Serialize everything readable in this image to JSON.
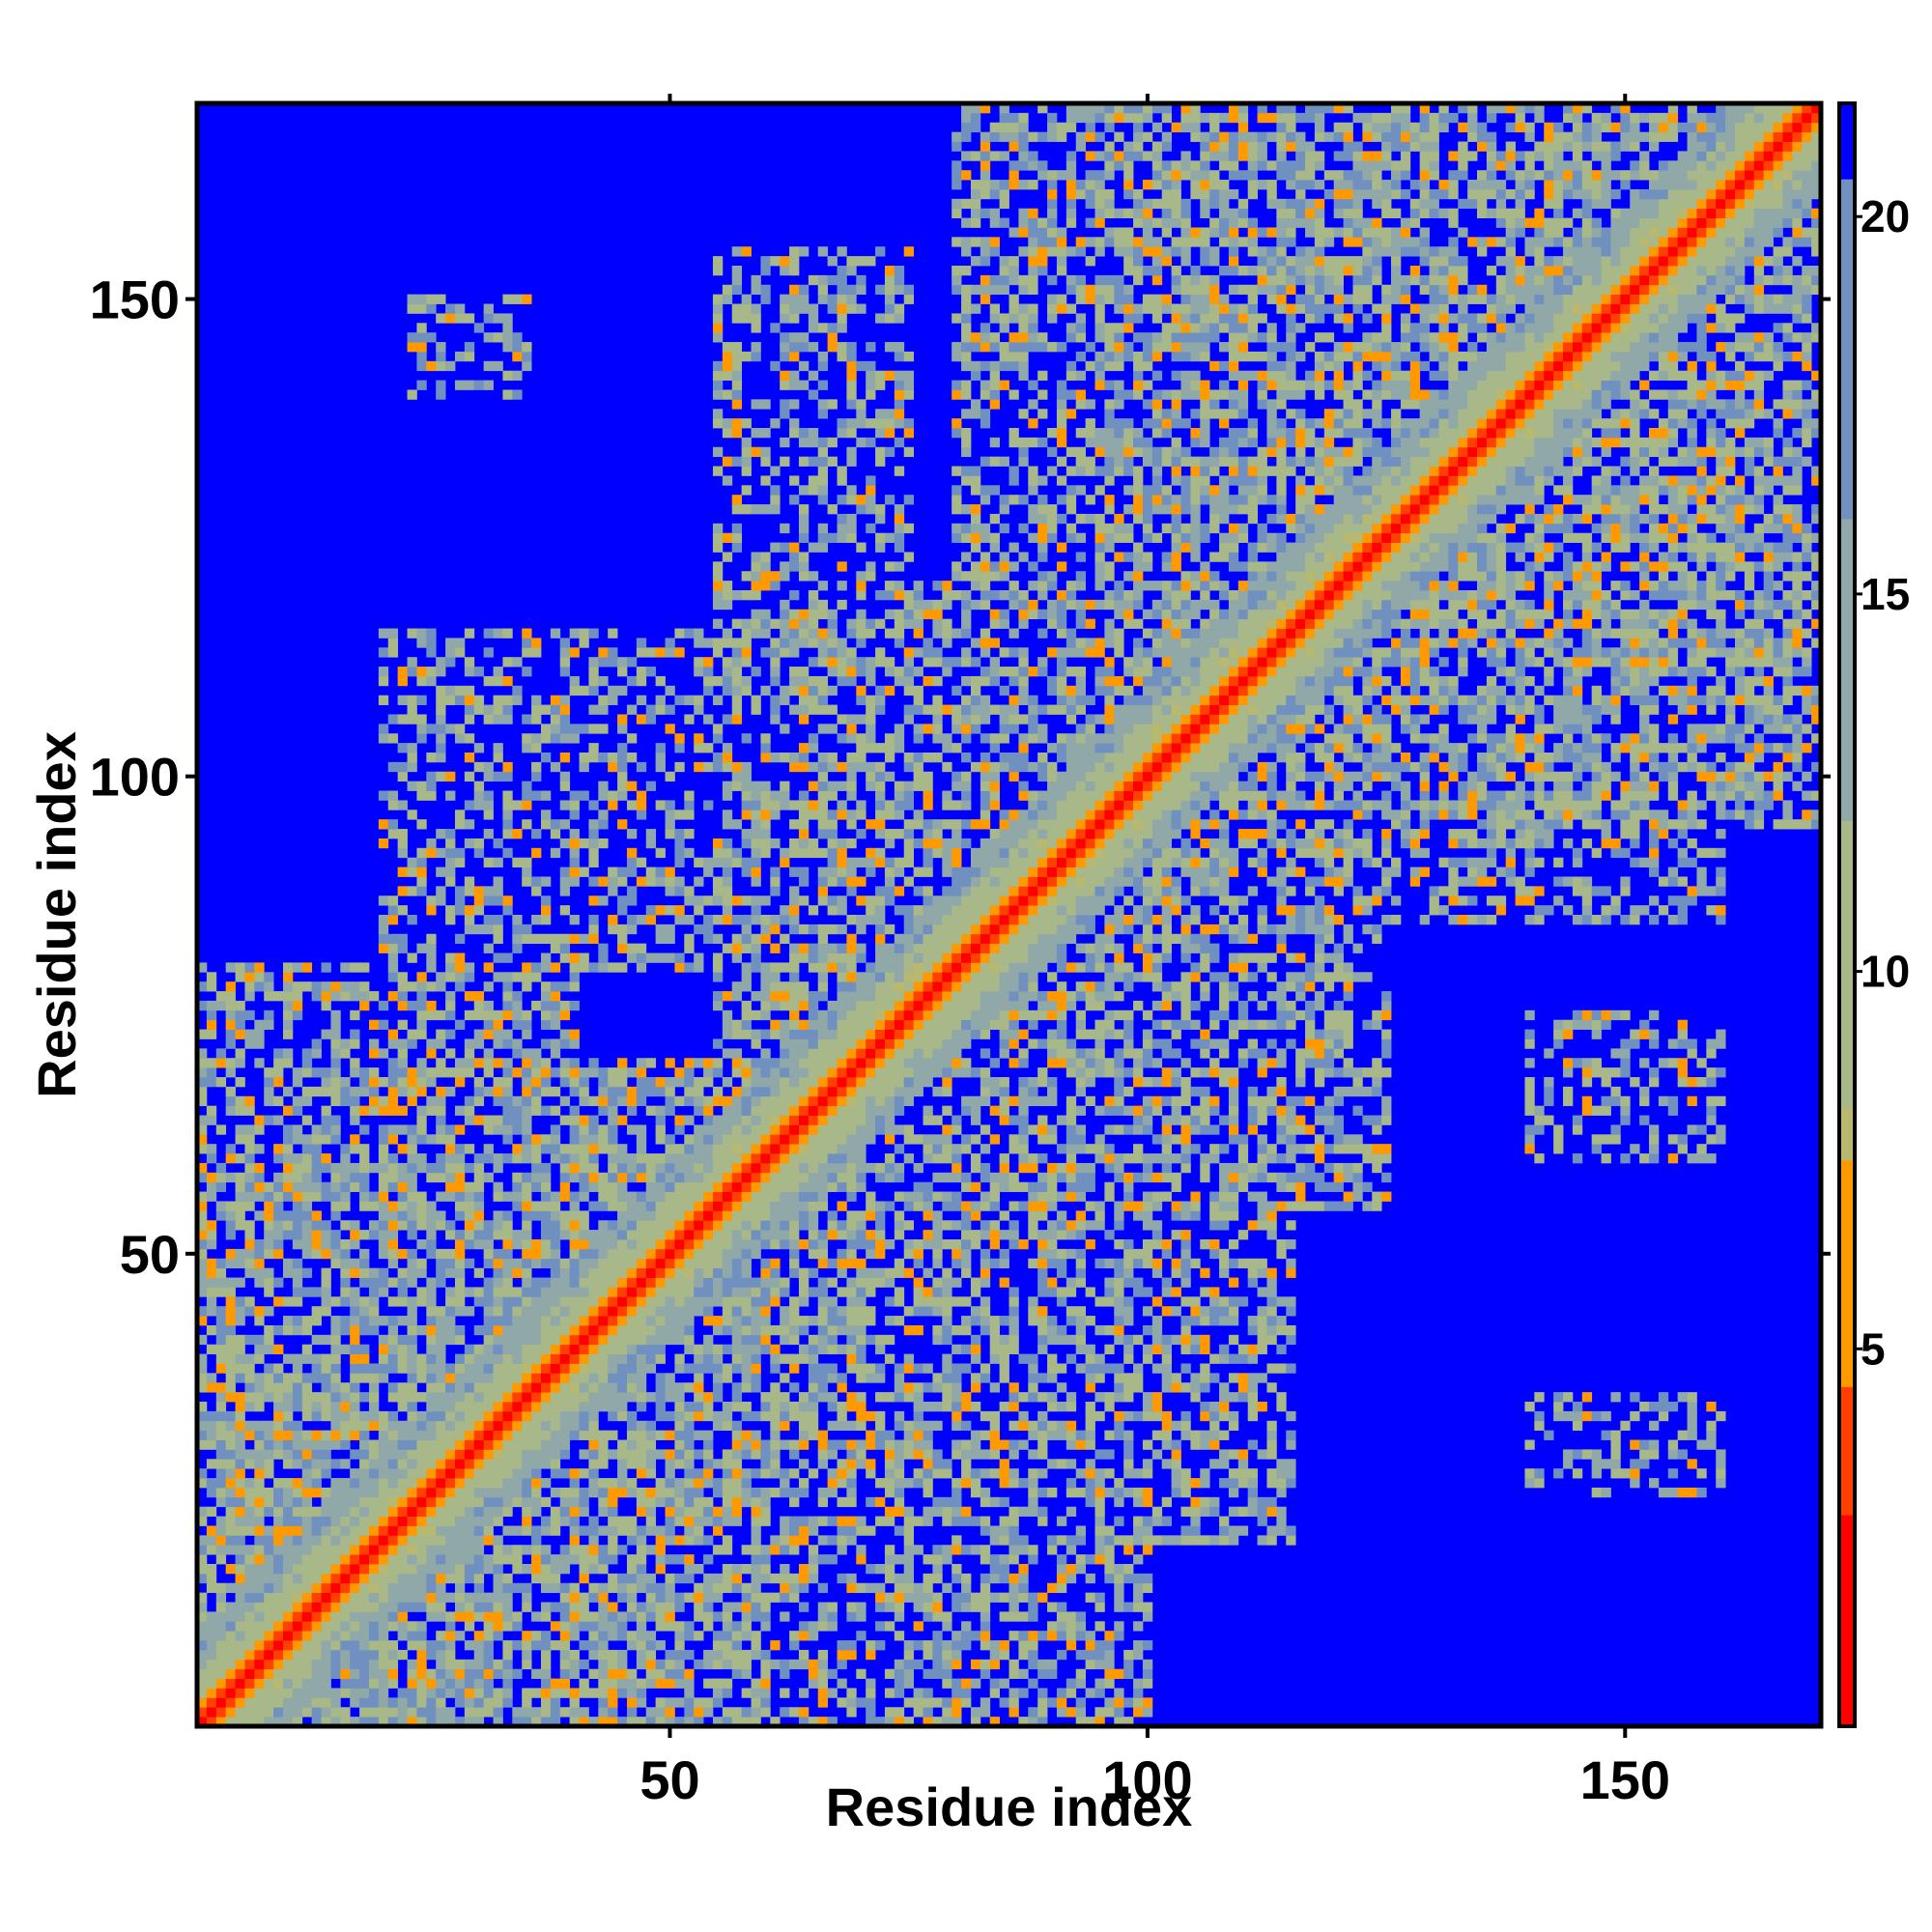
{
  "chart_data": {
    "type": "heatmap",
    "title": "",
    "xlabel": "Residue index",
    "ylabel": "Residue index",
    "n_residues": 170,
    "xlim": [
      0.5,
      170.5
    ],
    "ylim": [
      0.5,
      170.5
    ],
    "xticks": [
      50,
      100,
      150
    ],
    "yticks": [
      50,
      100,
      150
    ],
    "grid": false,
    "colorbar": {
      "ticks": [
        5,
        10,
        15,
        20
      ],
      "range": [
        0,
        21.5
      ],
      "colors": [
        {
          "max": 2.8,
          "color": "#ff0000"
        },
        {
          "max": 4.5,
          "color": "#ff4000"
        },
        {
          "max": 7.5,
          "color": "#ff9900"
        },
        {
          "max": 8.2,
          "color": "#b8b870"
        },
        {
          "max": 12.0,
          "color": "#a8b888"
        },
        {
          "max": 16.0,
          "color": "#90a8a8"
        },
        {
          "max": 20.5,
          "color": "#7090c0"
        },
        {
          "max": 100,
          "color": "#0000ff"
        }
      ]
    },
    "contact_blocks": [
      {
        "x": [
          1,
          60
        ],
        "y": [
          1,
          60
        ],
        "density": 0.75
      },
      {
        "x": [
          1,
          32
        ],
        "y": [
          1,
          32
        ],
        "density": 0.85
      },
      {
        "x": [
          30,
          70
        ],
        "y": [
          30,
          70
        ],
        "density": 0.7
      },
      {
        "x": [
          55,
          120
        ],
        "y": [
          55,
          120
        ],
        "density": 0.6
      },
      {
        "x": [
          95,
          170
        ],
        "y": [
          95,
          170
        ],
        "density": 0.7
      },
      {
        "x": [
          110,
          170
        ],
        "y": [
          110,
          170
        ],
        "density": 0.72
      },
      {
        "x": [
          1,
          40
        ],
        "y": [
          60,
          80
        ],
        "density": 0.55
      },
      {
        "x": [
          20,
          70
        ],
        "y": [
          80,
          115
        ],
        "density": 0.45
      },
      {
        "x": [
          55,
          75
        ],
        "y": [
          115,
          155
        ],
        "density": 0.45
      },
      {
        "x": [
          23,
          35
        ],
        "y": [
          140,
          150
        ],
        "density": 0.45
      },
      {
        "x": [
          60,
          100
        ],
        "y": [
          1,
          60
        ],
        "density": 0.55
      },
      {
        "x": [
          80,
          115
        ],
        "y": [
          20,
          65
        ],
        "density": 0.5
      },
      {
        "x": [
          95,
          125
        ],
        "y": [
          55,
          95
        ],
        "density": 0.5
      },
      {
        "x": [
          100,
          160
        ],
        "y": [
          85,
          130
        ],
        "density": 0.5
      },
      {
        "x": [
          140,
          160
        ],
        "y": [
          60,
          75
        ],
        "density": 0.45
      },
      {
        "x": [
          140,
          160
        ],
        "y": [
          25,
          35
        ],
        "density": 0.4
      },
      {
        "x": [
          80,
          135
        ],
        "y": [
          120,
          170
        ],
        "density": 0.55
      },
      {
        "x": [
          130,
          165
        ],
        "y": [
          95,
          140
        ],
        "density": 0.5
      }
    ]
  }
}
